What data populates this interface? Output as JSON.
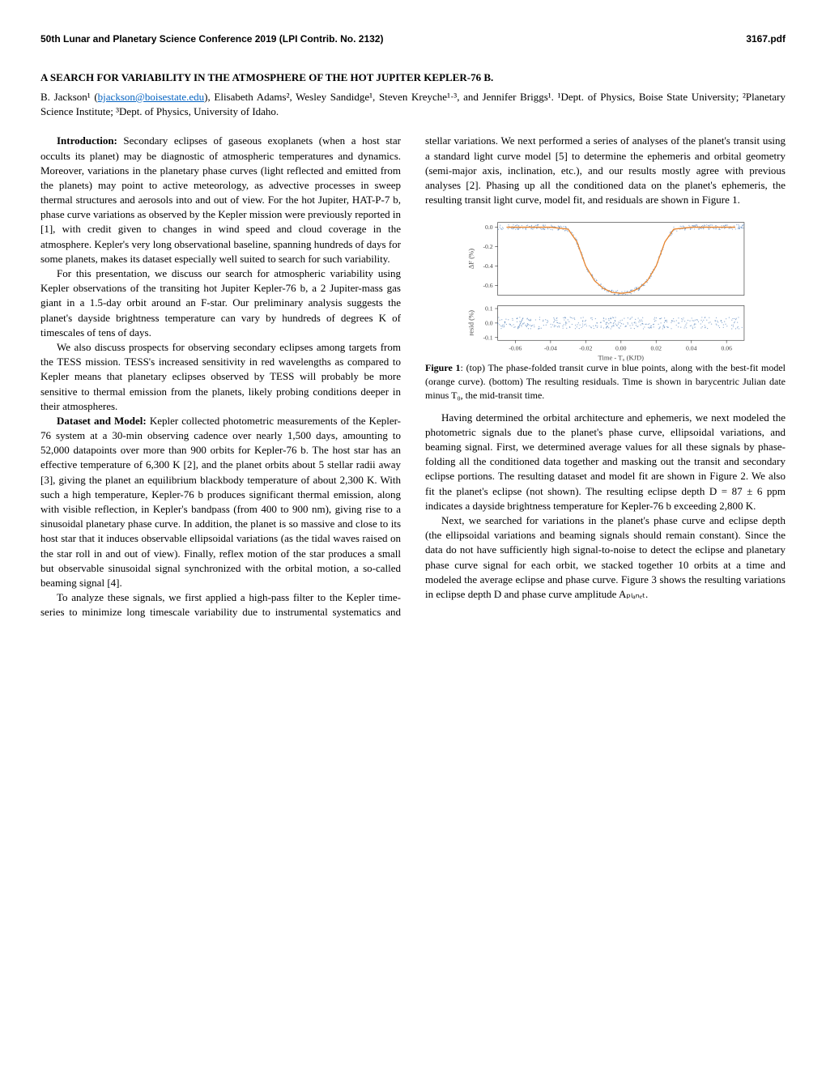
{
  "header": {
    "left": "50th Lunar and Planetary Science Conference 2019 (LPI Contrib. No. 2132)",
    "right": "3167.pdf"
  },
  "title": "A SEARCH FOR VARIABILITY IN THE ATMOSPHERE OF THE HOT JUPITER KEPLER-76 B.",
  "authors_html": "B. Jackson¹ (<a href='#'>bjackson@boisestate.edu</a>), Elisabeth Adams², Wesley Sandidge¹, Steven Kreyche¹·³, and Jennifer Briggs¹. ¹Dept. of Physics, Boise State University; ²Planetary Science Institute; ³Dept. of Physics, University of Idaho.",
  "body": {
    "p1_head": "Introduction:",
    "p1": " Secondary eclipses of gaseous exoplanets (when a host star occults its planet) may be diagnostic of atmospheric temperatures and dynamics. Moreover, variations in the planetary phase curves (light reflected and emitted from the planets) may point to active meteorology, as advective processes in sweep thermal structures and aerosols into and out of view. For the hot Jupiter, HAT-P-7 b, phase curve variations as observed by the Kepler mission were previously reported in [1], with credit given to changes in wind speed and cloud coverage in the atmosphere. Kepler's very long observational baseline, spanning hundreds of days for some planets, makes its dataset especially well suited to search for such variability.",
    "p2": "For this presentation, we discuss our search for atmospheric variability using Kepler observations of the transiting hot Jupiter Kepler-76 b, a 2 Jupiter-mass gas giant in a 1.5-day orbit around an F-star. Our preliminary analysis suggests the planet's dayside brightness temperature can vary by hundreds of degrees K of timescales of tens of days.",
    "p3": "We also discuss prospects for observing secondary eclipses among targets from the TESS mission. TESS's increased sensitivity in red wavelengths as compared to Kepler means that planetary eclipses observed by TESS will probably be more sensitive to thermal emission from the planets, likely probing conditions deeper in their atmospheres.",
    "p4_head": "Dataset and Model:",
    "p4": " Kepler collected photometric measurements of the Kepler-76 system at a 30-min observing cadence over nearly 1,500 days, amounting to 52,000 datapoints over more than 900 orbits for Kepler-76 b. The host star has an effective temperature of 6,300 K [2], and the planet orbits about 5 stellar radii away [3], giving the planet an equilibrium blackbody temperature of about 2,300 K. With such a high temperature, Kepler-76 b produces significant thermal emission, along with visible reflection, in Kepler's bandpass (from 400 to 900 nm), giving rise to a sinusoidal planetary phase curve. In addition, the planet is so massive and close to its host star that it induces observable ellipsoidal variations (as the tidal waves raised on the star roll in and out of view). Finally, reflex motion of the star produces a small but observable sinusoidal signal synchronized with the orbital motion, a so-called beaming signal [4].",
    "p5": "To analyze these signals, we first applied a high-pass filter to the Kepler time-series to minimize long timescale variability due to instrumental systematics and stellar variations. We next performed a series of analyses of the planet's transit using a standard light curve model [5] to determine the ephemeris and orbital geometry (semi-major axis, inclination, etc.), and our results mostly agree with previous analyses [2]. Phasing up all the conditioned data on the planet's ephemeris, the resulting transit light curve, model fit, and residuals are shown in Figure 1.",
    "p6": "Having determined the orbital architecture and ephemeris, we next modeled the photometric signals due to the planet's phase curve, ellipsoidal variations, and beaming signal. First, we determined average values for all these signals by phase-folding all the conditioned data together and masking out the transit and secondary eclipse portions. The resulting dataset and model fit are shown in Figure 2. We also fit the planet's eclipse (not shown). The resulting eclipse depth D = 87 ± 6 ppm indicates a dayside brightness temperature for Kepler-76 b exceeding 2,800 K.",
    "p7": "Next, we searched for variations in the planet's phase curve and eclipse depth (the ellipsoidal variations and beaming signals should remain constant). Since the data do not have sufficiently high signal-to-noise to detect the eclipse and planetary phase curve signal for each orbit, we stacked together 10 orbits at a time and modeled the average eclipse and phase curve. Figure 3 shows the resulting variations in eclipse depth D and phase curve amplitude Aₚₗₐₙₑₜ."
  },
  "figure1": {
    "label": "Figure 1",
    "caption": ": (top) The phase-folded transit curve in blue points, along with the best-fit model (orange curve). (bottom) The resulting residuals. Time is shown in barycentric Julian date minus T₀, the mid-transit time.",
    "top_panel": {
      "ylabel": "ΔF (%)",
      "ylim": [
        -0.7,
        0.05
      ],
      "yticks": [
        0.0,
        -0.2,
        -0.4,
        -0.6
      ],
      "point_color": "#3b6fb0",
      "model_color": "#e8852e",
      "background": "#ffffff",
      "grid_color": "#cccccc"
    },
    "bottom_panel": {
      "ylabel": "resid (%)",
      "xlabel": "Time - T₀ (KJD)",
      "ylim": [
        -0.12,
        0.12
      ],
      "yticks": [
        -0.1,
        0.0,
        0.1
      ],
      "xlim": [
        -0.07,
        0.07
      ],
      "xticks": [
        -0.06,
        -0.04,
        -0.02,
        0.0,
        0.02,
        0.04,
        0.06
      ],
      "point_color": "#3b6fb0",
      "background": "#ffffff"
    },
    "transit_curve": {
      "x": [
        -0.065,
        -0.05,
        -0.04,
        -0.03,
        -0.025,
        -0.02,
        -0.015,
        -0.01,
        -0.005,
        0,
        0.005,
        0.01,
        0.015,
        0.02,
        0.025,
        0.03,
        0.04,
        0.05,
        0.065
      ],
      "y": [
        0,
        0,
        0,
        -0.02,
        -0.15,
        -0.4,
        -0.55,
        -0.63,
        -0.67,
        -0.68,
        -0.67,
        -0.63,
        -0.55,
        -0.4,
        -0.15,
        -0.02,
        0,
        0,
        0
      ]
    }
  }
}
